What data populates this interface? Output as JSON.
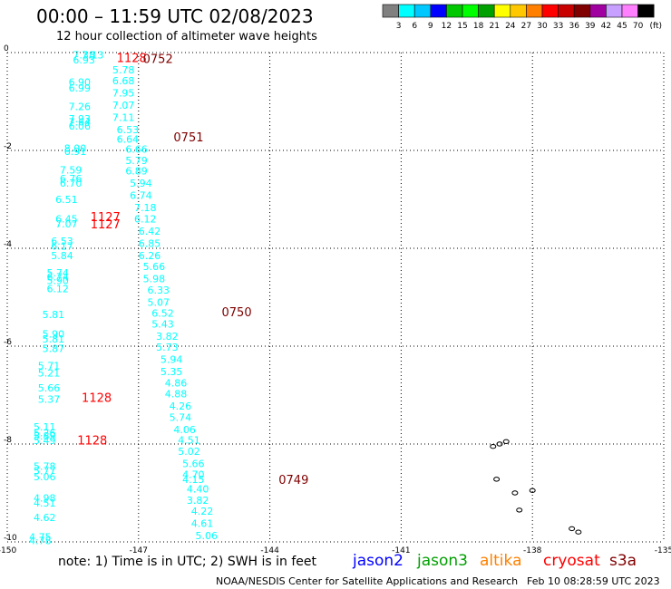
{
  "title": "00:00 – 11:59 UTC 02/08/2023",
  "subtitle": "12 hour collection of altimeter wave heights",
  "note": "note:  1) Time is in UTC;  2) SWH is in feet",
  "credit": "NOAA/NESDIS Center for Satellite Applications and Research",
  "stamp": "Feb 10 08:28:59 UTC 2023",
  "colorbar": {
    "unit": "(ft)",
    "colors": [
      "#808080",
      "#00ffff",
      "#00c8ff",
      "#0000ff",
      "#00c800",
      "#00ff00",
      "#00a000",
      "#ffff00",
      "#ffc800",
      "#ff8000",
      "#ff0000",
      "#c80000",
      "#800000",
      "#a000a0",
      "#c8a0ff",
      "#ff80ff",
      "#000000"
    ],
    "labels": [
      "3",
      "6",
      "9",
      "12",
      "15",
      "18",
      "21",
      "24",
      "27",
      "30",
      "33",
      "36",
      "39",
      "42",
      "45",
      "70"
    ]
  },
  "missions": [
    {
      "name": "jason2",
      "color": "#0000ff"
    },
    {
      "name": "jason3",
      "color": "#00a000"
    },
    {
      "name": "altika",
      "color": "#ff8000"
    },
    {
      "name": "cryosat",
      "color": "#ff0000"
    },
    {
      "name": "s3a",
      "color": "#800000"
    }
  ],
  "axes": {
    "lon_ticks": [
      "-150",
      "-147",
      "-144",
      "-141",
      "-138",
      "-135"
    ],
    "lat_ticks": [
      "0",
      "-2",
      "-4",
      "-6",
      "-8",
      "-10"
    ]
  },
  "map_data": {
    "lon_range": [
      -150,
      -135
    ],
    "lat_range": [
      -10,
      0
    ],
    "time_labels": [
      {
        "text": "1128",
        "lon": -147.5,
        "lat": -0.1,
        "color": "#ff0000"
      },
      {
        "text": "0752",
        "lon": -146.9,
        "lat": -0.12,
        "color": "#800000"
      },
      {
        "text": "0751",
        "lon": -146.2,
        "lat": -1.72,
        "color": "#800000"
      },
      {
        "text": "1127",
        "lon": -148.1,
        "lat": -3.35,
        "color": "#ff0000"
      },
      {
        "text": "1127",
        "lon": -148.1,
        "lat": -3.5,
        "color": "#ff0000"
      },
      {
        "text": "0750",
        "lon": -145.1,
        "lat": -5.3,
        "color": "#800000"
      },
      {
        "text": "1128",
        "lon": -148.3,
        "lat": -7.05,
        "color": "#ff0000"
      },
      {
        "text": "1128",
        "lon": -148.4,
        "lat": -7.92,
        "color": "#ff0000"
      },
      {
        "text": "0749",
        "lon": -143.8,
        "lat": -8.72,
        "color": "#800000"
      }
    ],
    "tracks": [
      {
        "name": "cyan-west",
        "color": "#00ffff",
        "points": [
          {
            "lon": -148.5,
            "lat": -0.05,
            "v": "7.38"
          },
          {
            "lon": -148.5,
            "lat": -0.15,
            "v": "6.93"
          },
          {
            "lon": -148.3,
            "lat": -0.05,
            "v": "7.13"
          },
          {
            "lon": -148.6,
            "lat": -0.6,
            "v": "6.90"
          },
          {
            "lon": -148.6,
            "lat": -0.72,
            "v": "6.99"
          },
          {
            "lon": -148.6,
            "lat": -1.1,
            "v": "7.26"
          },
          {
            "lon": -148.6,
            "lat": -1.35,
            "v": "7.93"
          },
          {
            "lon": -148.6,
            "lat": -1.42,
            "v": "7.64"
          },
          {
            "lon": -148.6,
            "lat": -1.5,
            "v": "6.06"
          },
          {
            "lon": -148.7,
            "lat": -1.95,
            "v": "8.00"
          },
          {
            "lon": -148.7,
            "lat": -2.02,
            "v": "6.91"
          },
          {
            "lon": -148.8,
            "lat": -2.4,
            "v": "7.59"
          },
          {
            "lon": -148.8,
            "lat": -2.57,
            "v": "6.76"
          },
          {
            "lon": -148.8,
            "lat": -2.67,
            "v": "6.70"
          },
          {
            "lon": -148.9,
            "lat": -3.0,
            "v": "6.51"
          },
          {
            "lon": -148.9,
            "lat": -3.4,
            "v": "6.45"
          },
          {
            "lon": -148.9,
            "lat": -3.5,
            "v": "7.07"
          },
          {
            "lon": -149.0,
            "lat": -3.85,
            "v": "6.53"
          },
          {
            "lon": -149.0,
            "lat": -3.95,
            "v": "6.17"
          },
          {
            "lon": -149.0,
            "lat": -4.15,
            "v": "5.84"
          },
          {
            "lon": -149.1,
            "lat": -4.5,
            "v": "5.74"
          },
          {
            "lon": -149.1,
            "lat": -4.58,
            "v": "6.74"
          },
          {
            "lon": -149.1,
            "lat": -4.66,
            "v": "5.90"
          },
          {
            "lon": -149.1,
            "lat": -4.82,
            "v": "6.12"
          },
          {
            "lon": -149.2,
            "lat": -5.35,
            "v": "5.81"
          },
          {
            "lon": -149.2,
            "lat": -5.75,
            "v": "5.90"
          },
          {
            "lon": -149.2,
            "lat": -5.85,
            "v": "5.81"
          },
          {
            "lon": -149.2,
            "lat": -6.05,
            "v": "5.87"
          },
          {
            "lon": -149.3,
            "lat": -6.4,
            "v": "5.71"
          },
          {
            "lon": -149.3,
            "lat": -6.55,
            "v": "5.21"
          },
          {
            "lon": -149.3,
            "lat": -6.85,
            "v": "5.66"
          },
          {
            "lon": -149.3,
            "lat": -7.08,
            "v": "5.37"
          },
          {
            "lon": -149.4,
            "lat": -7.65,
            "v": "5.11"
          },
          {
            "lon": -149.4,
            "lat": -7.77,
            "v": "5.26"
          },
          {
            "lon": -149.4,
            "lat": -7.83,
            "v": "5.89"
          },
          {
            "lon": -149.4,
            "lat": -7.93,
            "v": "5.49"
          },
          {
            "lon": -149.4,
            "lat": -8.45,
            "v": "5.78"
          },
          {
            "lon": -149.4,
            "lat": -8.55,
            "v": "5.77"
          },
          {
            "lon": -149.4,
            "lat": -8.67,
            "v": "5.06"
          },
          {
            "lon": -149.4,
            "lat": -9.1,
            "v": "4.98"
          },
          {
            "lon": -149.4,
            "lat": -9.2,
            "v": "4.51"
          },
          {
            "lon": -149.4,
            "lat": -9.5,
            "v": "4.62"
          },
          {
            "lon": -149.5,
            "lat": -9.9,
            "v": "4.75"
          },
          {
            "lon": -149.5,
            "lat": -9.97,
            "v": "4.78"
          }
        ]
      },
      {
        "name": "cyan-east",
        "color": "#00ffff",
        "points": [
          {
            "lon": -147.6,
            "lat": -0.35,
            "v": "5.78"
          },
          {
            "lon": -147.6,
            "lat": -0.57,
            "v": "6.68"
          },
          {
            "lon": -147.6,
            "lat": -0.82,
            "v": "7.95"
          },
          {
            "lon": -147.6,
            "lat": -1.07,
            "v": "7.07"
          },
          {
            "lon": -147.6,
            "lat": -1.32,
            "v": "7.11"
          },
          {
            "lon": -147.5,
            "lat": -1.57,
            "v": "6.53"
          },
          {
            "lon": -147.5,
            "lat": -1.77,
            "v": "6.64"
          },
          {
            "lon": -147.3,
            "lat": -1.97,
            "v": "6.66"
          },
          {
            "lon": -147.3,
            "lat": -2.2,
            "v": "5.79"
          },
          {
            "lon": -147.3,
            "lat": -2.42,
            "v": "6.89"
          },
          {
            "lon": -147.2,
            "lat": -2.67,
            "v": "5.94"
          },
          {
            "lon": -147.2,
            "lat": -2.92,
            "v": "6.74"
          },
          {
            "lon": -147.1,
            "lat": -3.17,
            "v": "7.18"
          },
          {
            "lon": -147.1,
            "lat": -3.4,
            "v": "6.12"
          },
          {
            "lon": -147.0,
            "lat": -3.65,
            "v": "6.42"
          },
          {
            "lon": -147.0,
            "lat": -3.9,
            "v": "6.85"
          },
          {
            "lon": -147.0,
            "lat": -4.15,
            "v": "6.26"
          },
          {
            "lon": -146.9,
            "lat": -4.37,
            "v": "5.66"
          },
          {
            "lon": -146.9,
            "lat": -4.62,
            "v": "5.98"
          },
          {
            "lon": -146.8,
            "lat": -4.85,
            "v": "6.33"
          },
          {
            "lon": -146.8,
            "lat": -5.1,
            "v": "5.07"
          },
          {
            "lon": -146.7,
            "lat": -5.32,
            "v": "6.52"
          },
          {
            "lon": -146.7,
            "lat": -5.55,
            "v": "5.43"
          },
          {
            "lon": -146.6,
            "lat": -5.8,
            "v": "3.82"
          },
          {
            "lon": -146.6,
            "lat": -6.02,
            "v": "5.73"
          },
          {
            "lon": -146.5,
            "lat": -6.27,
            "v": "5.94"
          },
          {
            "lon": -146.5,
            "lat": -6.52,
            "v": "5.35"
          },
          {
            "lon": -146.4,
            "lat": -6.75,
            "v": "4.86"
          },
          {
            "lon": -146.4,
            "lat": -6.97,
            "v": "4.88"
          },
          {
            "lon": -146.3,
            "lat": -7.22,
            "v": "4.26"
          },
          {
            "lon": -146.3,
            "lat": -7.45,
            "v": "5.74"
          },
          {
            "lon": -146.2,
            "lat": -7.7,
            "v": "4.06"
          },
          {
            "lon": -146.1,
            "lat": -7.92,
            "v": "4.51"
          },
          {
            "lon": -146.1,
            "lat": -8.15,
            "v": "5.02"
          },
          {
            "lon": -146.0,
            "lat": -8.4,
            "v": "5.66"
          },
          {
            "lon": -146.0,
            "lat": -8.62,
            "v": "4.70"
          },
          {
            "lon": -146.0,
            "lat": -8.72,
            "v": "4.15"
          },
          {
            "lon": -145.9,
            "lat": -8.92,
            "v": "4.40"
          },
          {
            "lon": -145.9,
            "lat": -9.15,
            "v": "3.82"
          },
          {
            "lon": -145.8,
            "lat": -9.37,
            "v": "4.22"
          },
          {
            "lon": -145.8,
            "lat": -9.62,
            "v": "4.61"
          },
          {
            "lon": -145.7,
            "lat": -9.87,
            "v": "5.06"
          }
        ]
      }
    ],
    "islands": [
      {
        "lon": -138.75,
        "lat": -8.0
      },
      {
        "lon": -138.9,
        "lat": -8.05
      },
      {
        "lon": -138.6,
        "lat": -7.95
      },
      {
        "lon": -138.82,
        "lat": -8.72
      },
      {
        "lon": -138.0,
        "lat": -8.95
      },
      {
        "lon": -138.4,
        "lat": -9.0
      },
      {
        "lon": -138.3,
        "lat": -9.35
      },
      {
        "lon": -137.1,
        "lat": -9.73
      },
      {
        "lon": -136.95,
        "lat": -9.8
      }
    ]
  }
}
